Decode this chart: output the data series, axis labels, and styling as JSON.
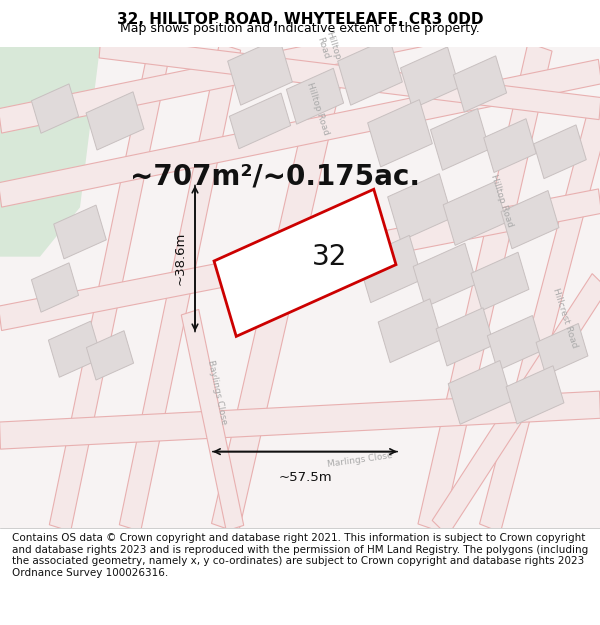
{
  "title": "32, HILLTOP ROAD, WHYTELEAFE, CR3 0DD",
  "subtitle": "Map shows position and indicative extent of the property.",
  "footer": "Contains OS data © Crown copyright and database right 2021. This information is subject to Crown copyright and database rights 2023 and is reproduced with the permission of HM Land Registry. The polygons (including the associated geometry, namely x, y co-ordinates) are subject to Crown copyright and database rights 2023 Ordnance Survey 100026316.",
  "area_text": "~707m²/~0.175ac.",
  "width_text": "~57.5m",
  "height_text": "~38.6m",
  "property_number": "32",
  "map_bg": "#f7f3f3",
  "road_fill": "#f5e8e8",
  "road_edge": "#e8b0b0",
  "block_fill": "#e0dada",
  "block_edge": "#c8c0c0",
  "property_outline": "#cc0000",
  "property_fill": "#ffffff",
  "green_area": "#d8e8d8",
  "title_fontsize": 11,
  "subtitle_fontsize": 9,
  "footer_fontsize": 7.5,
  "area_fontsize": 20,
  "dim_fontsize": 9.5,
  "number_fontsize": 20,
  "label_fontsize": 6.5,
  "label_color": "#aaaaaa"
}
